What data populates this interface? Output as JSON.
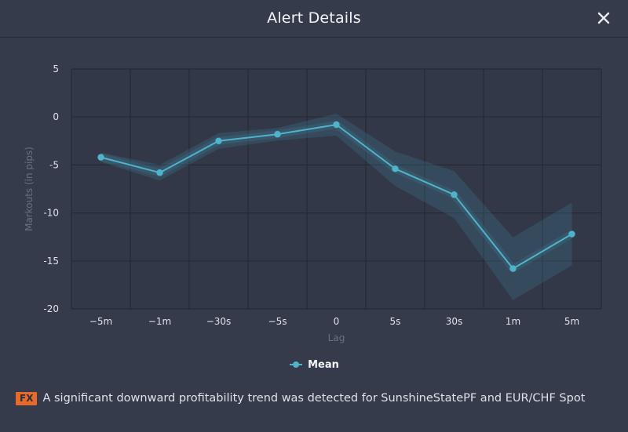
{
  "dialog": {
    "title": "Alert Details",
    "close_icon": "close-icon"
  },
  "chart_data": {
    "type": "line",
    "categories": [
      "-5m",
      "-1m",
      "-30s",
      "-5s",
      "0",
      "5s",
      "30s",
      "1m",
      "5m"
    ],
    "series": [
      {
        "name": "Mean",
        "values": [
          -4.2,
          -5.8,
          -2.5,
          -1.8,
          -0.8,
          -5.4,
          -8.1,
          -15.8,
          -12.2
        ]
      }
    ],
    "xlabel": "Lag",
    "ylabel": "Markouts (in pips)",
    "ylim": [
      -20,
      5
    ],
    "yticks": [
      5,
      0,
      -5,
      -10,
      -15,
      -20
    ],
    "grid": true,
    "legend": "bottom-center",
    "colors": {
      "line": "#4fb3cc",
      "band": "#3e7f96",
      "plot_bg": "#323847",
      "grid": "#252a36"
    }
  },
  "legend": {
    "items": [
      {
        "label": "Mean",
        "icon": "line-marker-icon"
      }
    ]
  },
  "footer": {
    "badge": "FX",
    "message": "A significant downward profitability trend was detected for SunshineStatePF and EUR/CHF Spot"
  }
}
